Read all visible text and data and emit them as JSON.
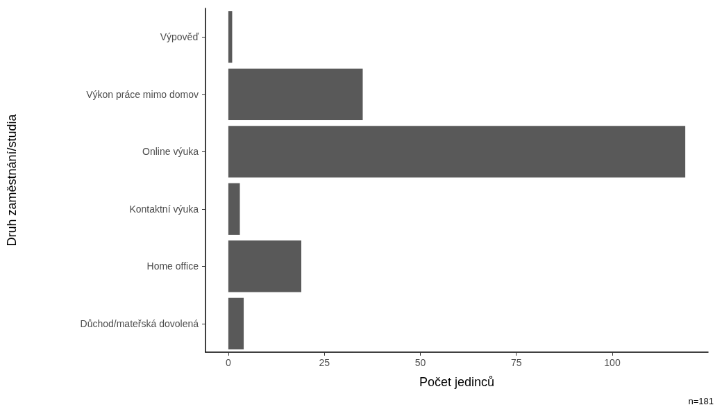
{
  "chart_data": {
    "type": "bar",
    "orientation": "horizontal",
    "xlabel": "Počet jedinců",
    "ylabel": "Druh zaměstnání/studia",
    "categories": [
      "Výpověď",
      "Výkon práce mimo domov",
      "Online výuka",
      "Kontaktní výuka",
      "Home office",
      "Důchod/mateřská dovolená"
    ],
    "values": [
      1,
      35,
      119,
      3,
      19,
      4
    ],
    "color": "#595959",
    "xlim": [
      -5.95,
      124.95
    ],
    "xticks": [
      0,
      25,
      50,
      75,
      100
    ],
    "annotations": [
      "n=181"
    ]
  }
}
